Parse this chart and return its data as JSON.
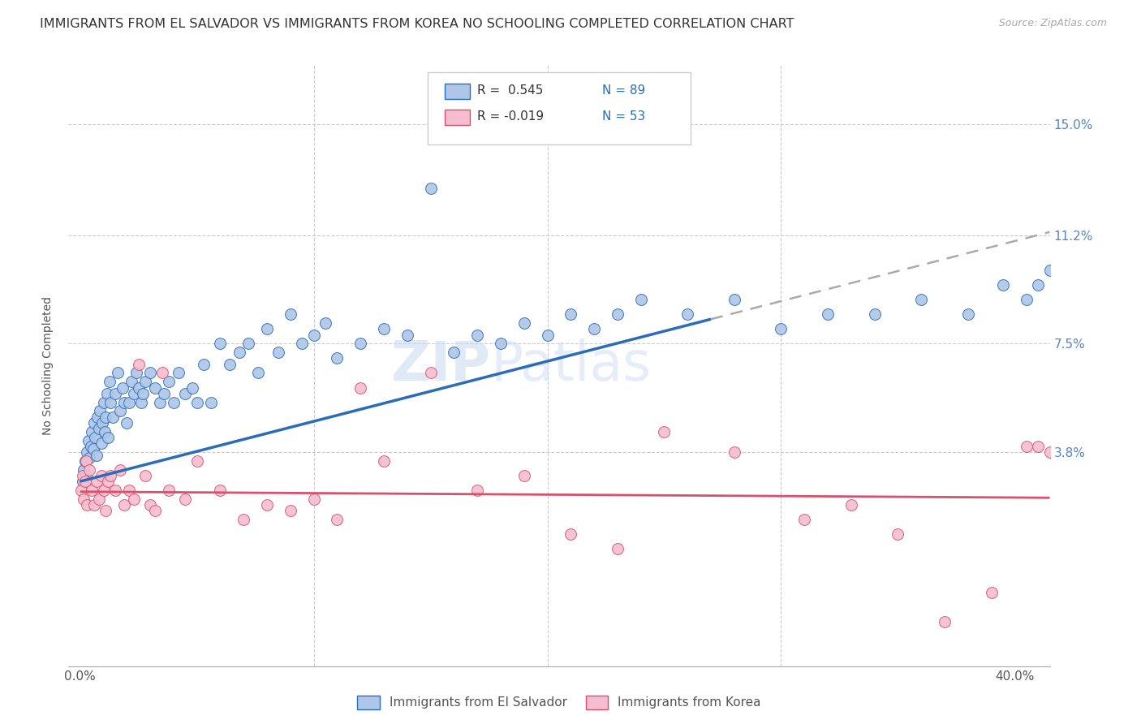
{
  "title": "IMMIGRANTS FROM EL SALVADOR VS IMMIGRANTS FROM KOREA NO SCHOOLING COMPLETED CORRELATION CHART",
  "source": "Source: ZipAtlas.com",
  "ylabel": "No Schooling Completed",
  "y_ticks": [
    3.8,
    7.5,
    11.2,
    15.0
  ],
  "y_tick_labels": [
    "3.8%",
    "7.5%",
    "11.2%",
    "15.0%"
  ],
  "color_blue": "#aec6e8",
  "color_pink": "#f5bdd0",
  "color_blue_line": "#2b6cb8",
  "color_pink_line": "#d9506a",
  "legend_r_blue": "R =  0.545",
  "legend_n_blue": "N = 89",
  "legend_r_pink": "R = -0.019",
  "legend_n_pink": "N = 53",
  "legend_label_blue": "Immigrants from El Salvador",
  "legend_label_pink": "Immigrants from Korea",
  "title_fontsize": 11.5,
  "source_fontsize": 9,
  "axis_label_fontsize": 10,
  "tick_fontsize": 11,
  "watermark": "ZIPAtlas",
  "blue_slope": 0.205,
  "blue_intercept": 2.8,
  "pink_slope": -0.005,
  "pink_intercept": 2.45,
  "blue_dash_start": 27,
  "xlim_min": -0.5,
  "xlim_max": 41.5,
  "ylim_min": -3.5,
  "ylim_max": 17.0,
  "blue_scatter_x": [
    0.1,
    0.15,
    0.2,
    0.25,
    0.3,
    0.35,
    0.4,
    0.45,
    0.5,
    0.55,
    0.6,
    0.65,
    0.7,
    0.75,
    0.8,
    0.85,
    0.9,
    0.95,
    1.0,
    1.05,
    1.1,
    1.15,
    1.2,
    1.25,
    1.3,
    1.4,
    1.5,
    1.6,
    1.7,
    1.8,
    1.9,
    2.0,
    2.1,
    2.2,
    2.3,
    2.4,
    2.5,
    2.6,
    2.7,
    2.8,
    3.0,
    3.2,
    3.4,
    3.6,
    3.8,
    4.0,
    4.2,
    4.5,
    4.8,
    5.0,
    5.3,
    5.6,
    6.0,
    6.4,
    6.8,
    7.2,
    7.6,
    8.0,
    8.5,
    9.0,
    9.5,
    10.0,
    10.5,
    11.0,
    12.0,
    13.0,
    14.0,
    15.0,
    16.0,
    17.0,
    18.0,
    19.0,
    20.0,
    21.0,
    22.0,
    23.0,
    24.0,
    26.0,
    28.0,
    30.0,
    32.0,
    34.0,
    36.0,
    38.0,
    39.5,
    40.5,
    41.0,
    41.5,
    42.0
  ],
  "blue_scatter_y": [
    2.8,
    3.2,
    3.5,
    3.0,
    3.8,
    4.2,
    3.6,
    4.0,
    4.5,
    3.9,
    4.8,
    4.3,
    3.7,
    5.0,
    4.6,
    5.2,
    4.1,
    4.8,
    5.5,
    4.5,
    5.0,
    5.8,
    4.3,
    6.2,
    5.5,
    5.0,
    5.8,
    6.5,
    5.2,
    6.0,
    5.5,
    4.8,
    5.5,
    6.2,
    5.8,
    6.5,
    6.0,
    5.5,
    5.8,
    6.2,
    6.5,
    6.0,
    5.5,
    5.8,
    6.2,
    5.5,
    6.5,
    5.8,
    6.0,
    5.5,
    6.8,
    5.5,
    7.5,
    6.8,
    7.2,
    7.5,
    6.5,
    8.0,
    7.2,
    8.5,
    7.5,
    7.8,
    8.2,
    7.0,
    7.5,
    8.0,
    7.8,
    12.8,
    7.2,
    7.8,
    7.5,
    8.2,
    7.8,
    8.5,
    8.0,
    8.5,
    9.0,
    8.5,
    9.0,
    8.0,
    8.5,
    8.5,
    9.0,
    8.5,
    9.5,
    9.0,
    9.5,
    10.0,
    10.5
  ],
  "pink_scatter_x": [
    0.05,
    0.1,
    0.15,
    0.2,
    0.25,
    0.3,
    0.4,
    0.5,
    0.6,
    0.7,
    0.8,
    0.9,
    1.0,
    1.1,
    1.2,
    1.3,
    1.5,
    1.7,
    1.9,
    2.1,
    2.3,
    2.5,
    2.8,
    3.0,
    3.2,
    3.5,
    3.8,
    4.5,
    5.0,
    6.0,
    7.0,
    8.0,
    9.0,
    10.0,
    11.0,
    12.0,
    13.0,
    15.0,
    17.0,
    19.0,
    21.0,
    23.0,
    25.0,
    28.0,
    31.0,
    33.0,
    35.0,
    37.0,
    39.0,
    40.5,
    41.0,
    41.5,
    42.0
  ],
  "pink_scatter_y": [
    2.5,
    3.0,
    2.2,
    2.8,
    3.5,
    2.0,
    3.2,
    2.5,
    2.0,
    2.8,
    2.2,
    3.0,
    2.5,
    1.8,
    2.8,
    3.0,
    2.5,
    3.2,
    2.0,
    2.5,
    2.2,
    6.8,
    3.0,
    2.0,
    1.8,
    6.5,
    2.5,
    2.2,
    3.5,
    2.5,
    1.5,
    2.0,
    1.8,
    2.2,
    1.5,
    6.0,
    3.5,
    6.5,
    2.5,
    3.0,
    1.0,
    0.5,
    4.5,
    3.8,
    1.5,
    2.0,
    1.0,
    -2.0,
    -1.0,
    4.0,
    4.0,
    3.8,
    2.5
  ]
}
